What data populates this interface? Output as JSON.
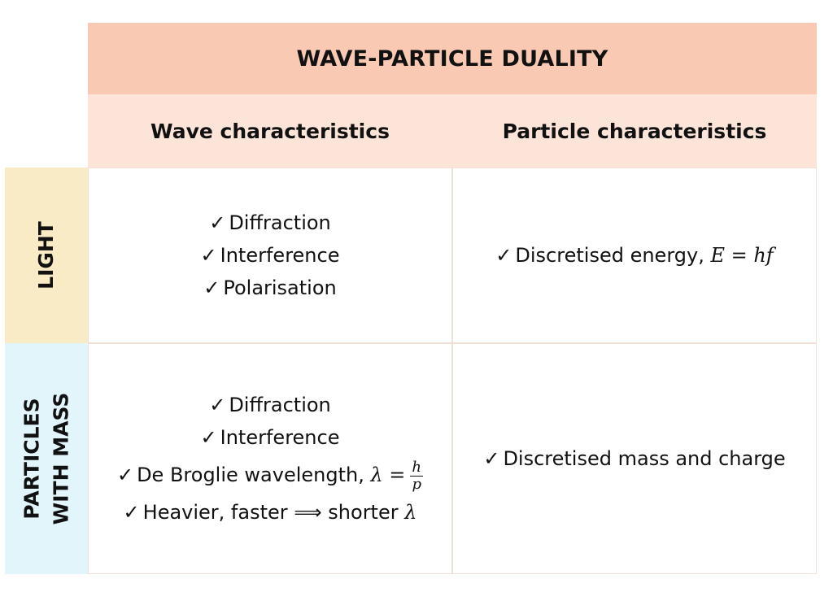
{
  "title": "WAVE-PARTICLE DUALITY",
  "columns": {
    "wave": "Wave characteristics",
    "particle": "Particle characteristics"
  },
  "rows": {
    "light": "LIGHT",
    "mass_line1": "PARTICLES",
    "mass_line2": "WITH MASS"
  },
  "check_glyph": "✓",
  "light_wave": [
    "Diffraction",
    "Interference",
    "Polarisation"
  ],
  "light_particle": {
    "text": "Discretised energy, ",
    "equation": "E = hf"
  },
  "mass_wave": {
    "items": [
      "Diffraction",
      "Interference"
    ],
    "debroglie_text": "De Broglie wavelength, ",
    "debroglie_lhs": "λ =",
    "frac_num": "h",
    "frac_den": "p",
    "heavier_text": "Heavier, faster ⟹ shorter ",
    "heavier_symbol": "λ"
  },
  "mass_particle": "Discretised mass and charge",
  "colors": {
    "title_bg": "#f9c9b3",
    "header_bg": "#fde4d9",
    "light_bg": "#faebc7",
    "mass_bg": "#e1f5fb"
  }
}
